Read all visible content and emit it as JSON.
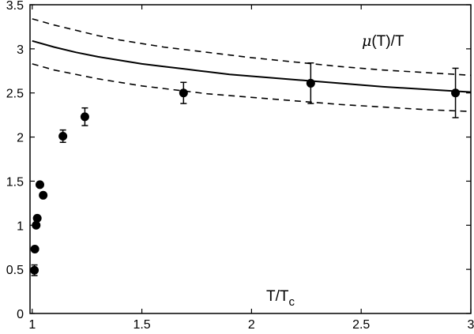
{
  "chart_data": {
    "type": "scatter",
    "xlim": [
      0.99,
      3.0
    ],
    "ylim": [
      0,
      3.5
    ],
    "x_ticks": [
      {
        "value": 1,
        "label": "1"
      },
      {
        "value": 1.5,
        "label": "1.5"
      },
      {
        "value": 2,
        "label": "2"
      },
      {
        "value": 2.5,
        "label": "2.5"
      },
      {
        "value": 3,
        "label": "3"
      }
    ],
    "y_ticks": [
      {
        "value": 0,
        "label": "0"
      },
      {
        "value": 0.5,
        "label": "0.5"
      },
      {
        "value": 1,
        "label": "1"
      },
      {
        "value": 1.5,
        "label": "1.5"
      },
      {
        "value": 2,
        "label": "2"
      },
      {
        "value": 2.5,
        "label": "2.5"
      },
      {
        "value": 3,
        "label": "3"
      },
      {
        "value": 3.5,
        "label": "3.5"
      }
    ],
    "grid": false,
    "annotations": {
      "xlabel": {
        "main": "T/T",
        "subscript": "c"
      },
      "curve_label": {
        "symbol": "μ",
        "rest": "(T)/T"
      }
    },
    "series": [
      {
        "kind": "points",
        "points": [
          {
            "x": 1.01,
            "y": 0.49,
            "err": 0.06
          },
          {
            "x": 1.012,
            "y": 0.73,
            "err": 0
          },
          {
            "x": 1.018,
            "y": 1.0,
            "err": 0
          },
          {
            "x": 1.023,
            "y": 1.08,
            "err": 0
          },
          {
            "x": 1.035,
            "y": 1.46,
            "err": 0
          },
          {
            "x": 1.05,
            "y": 1.34,
            "err": 0
          },
          {
            "x": 1.14,
            "y": 2.01,
            "err": 0.07
          },
          {
            "x": 1.24,
            "y": 2.23,
            "err": 0.1
          },
          {
            "x": 1.69,
            "y": 2.5,
            "err": 0.12
          },
          {
            "x": 2.27,
            "y": 2.61,
            "err": 0.23
          },
          {
            "x": 2.93,
            "y": 2.5,
            "err": 0.28
          }
        ]
      },
      {
        "kind": "curve",
        "style": "solid",
        "x": [
          1.0,
          1.1,
          1.2,
          1.3,
          1.4,
          1.5,
          1.6,
          1.7,
          1.8,
          1.9,
          2.0,
          2.2,
          2.4,
          2.6,
          2.8,
          3.0
        ],
        "y": [
          3.09,
          3.02,
          2.96,
          2.91,
          2.87,
          2.83,
          2.8,
          2.77,
          2.74,
          2.71,
          2.69,
          2.65,
          2.61,
          2.57,
          2.54,
          2.51
        ]
      },
      {
        "kind": "curve",
        "style": "dashed",
        "x": [
          1.0,
          1.1,
          1.2,
          1.3,
          1.4,
          1.5,
          1.6,
          1.7,
          1.8,
          1.9,
          2.0,
          2.2,
          2.4,
          2.6,
          2.8,
          3.0
        ],
        "y": [
          3.34,
          3.27,
          3.21,
          3.15,
          3.1,
          3.06,
          3.02,
          2.99,
          2.96,
          2.93,
          2.9,
          2.85,
          2.8,
          2.76,
          2.73,
          2.7
        ]
      },
      {
        "kind": "curve",
        "style": "dashed",
        "x": [
          1.0,
          1.1,
          1.2,
          1.3,
          1.4,
          1.5,
          1.6,
          1.7,
          1.8,
          1.9,
          2.0,
          2.2,
          2.4,
          2.6,
          2.8,
          3.0
        ],
        "y": [
          2.83,
          2.76,
          2.71,
          2.66,
          2.62,
          2.58,
          2.55,
          2.52,
          2.49,
          2.47,
          2.45,
          2.41,
          2.37,
          2.34,
          2.31,
          2.29
        ]
      }
    ]
  }
}
